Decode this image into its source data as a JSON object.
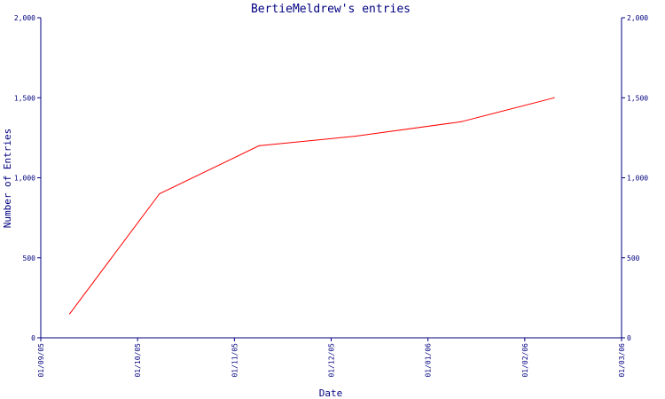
{
  "chart_data": {
    "type": "line",
    "title": "BertieMeldrew's entries",
    "xlabel": "Date",
    "ylabel": "Number of Entries",
    "x_ticks": [
      "01/09/05",
      "01/10/05",
      "01/11/05",
      "01/12/05",
      "01/01/06",
      "01/02/06",
      "01/03/06"
    ],
    "y_ticks": [
      0,
      500,
      1000,
      1500,
      2000
    ],
    "y_tick_labels": [
      "0",
      "500",
      "1,000",
      "1,500",
      "2,000"
    ],
    "ylim": [
      0,
      2000
    ],
    "xlim": [
      "2005-09-01",
      "2006-03-01"
    ],
    "grid": false,
    "series": [
      {
        "color": "#ff0000",
        "x": [
          "2005-09-10",
          "2005-10-08",
          "2005-11-08",
          "2005-12-08",
          "2006-01-10",
          "2006-02-08"
        ],
        "values": [
          150,
          900,
          1200,
          1260,
          1350,
          1500
        ]
      }
    ]
  }
}
